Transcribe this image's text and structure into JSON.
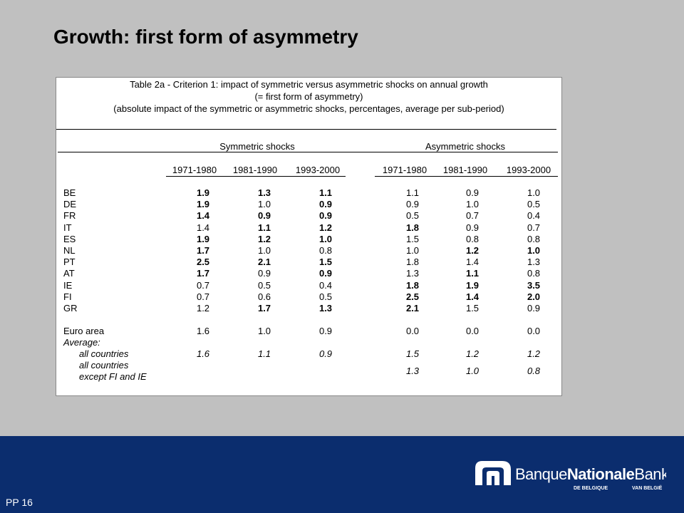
{
  "slide": {
    "title": "Growth: first form of asymmetry",
    "page": "PP 16"
  },
  "table": {
    "caption": [
      "Table 2a - Criterion 1: impact of symmetric versus asymmetric shocks on annual growth",
      "(= first form of asymmetry)",
      "(absolute impact of the symmetric or asymmetric shocks, percentages, average per sub-period)"
    ],
    "groups": [
      "Symmetric shocks",
      "Asymmetric shocks"
    ],
    "columns": [
      "1971-1980",
      "1981-1990",
      "1993-2000",
      "1971-1980",
      "1981-1990",
      "1993-2000"
    ],
    "rows": [
      {
        "label": "BE",
        "values": [
          "1.9",
          "1.3",
          "1.1",
          "1.1",
          "0.9",
          "1.0"
        ],
        "bold": [
          true,
          true,
          true,
          false,
          false,
          false
        ]
      },
      {
        "label": "DE",
        "values": [
          "1.9",
          "1.0",
          "0.9",
          "0.9",
          "1.0",
          "0.5"
        ],
        "bold": [
          true,
          false,
          true,
          false,
          false,
          false
        ]
      },
      {
        "label": "FR",
        "values": [
          "1.4",
          "0.9",
          "0.9",
          "0.5",
          "0.7",
          "0.4"
        ],
        "bold": [
          true,
          true,
          true,
          false,
          false,
          false
        ]
      },
      {
        "label": "IT",
        "values": [
          "1.4",
          "1.1",
          "1.2",
          "1.8",
          "0.9",
          "0.7"
        ],
        "bold": [
          false,
          true,
          true,
          true,
          false,
          false
        ]
      },
      {
        "label": "ES",
        "values": [
          "1.9",
          "1.2",
          "1.0",
          "1.5",
          "0.8",
          "0.8"
        ],
        "bold": [
          true,
          true,
          true,
          false,
          false,
          false
        ]
      },
      {
        "label": "NL",
        "values": [
          "1.7",
          "1.0",
          "0.8",
          "1.0",
          "1.2",
          "1.0"
        ],
        "bold": [
          true,
          false,
          false,
          false,
          true,
          true
        ]
      },
      {
        "label": "PT",
        "values": [
          "2.5",
          "2.1",
          "1.5",
          "1.8",
          "1.4",
          "1.3"
        ],
        "bold": [
          true,
          true,
          true,
          false,
          false,
          false
        ]
      },
      {
        "label": "AT",
        "values": [
          "1.7",
          "0.9",
          "0.9",
          "1.3",
          "1.1",
          "0.8"
        ],
        "bold": [
          true,
          false,
          true,
          false,
          true,
          false
        ]
      },
      {
        "label": "IE",
        "values": [
          "0.7",
          "0.5",
          "0.4",
          "1.8",
          "1.9",
          "3.5"
        ],
        "bold": [
          false,
          false,
          false,
          true,
          true,
          true
        ]
      },
      {
        "label": "FI",
        "values": [
          "0.7",
          "0.6",
          "0.5",
          "2.5",
          "1.4",
          "2.0"
        ],
        "bold": [
          false,
          false,
          false,
          true,
          true,
          true
        ]
      },
      {
        "label": "GR",
        "values": [
          "1.2",
          "1.7",
          "1.3",
          "2.1",
          "1.5",
          "0.9"
        ],
        "bold": [
          false,
          true,
          true,
          true,
          false,
          false
        ]
      },
      {
        "label": "Euro area",
        "values": [
          "1.6",
          "1.0",
          "0.9",
          "0.0",
          "0.0",
          "0.0"
        ]
      },
      {
        "label": "Average:",
        "italic": true
      },
      {
        "label": "all countries",
        "values": [
          "1.6",
          "1.1",
          "0.9",
          "1.5",
          "1.2",
          "1.2"
        ],
        "italic": true,
        "indent": true
      },
      {
        "label": [
          "all countries",
          "except FI and IE"
        ],
        "values": [
          null,
          null,
          null,
          "1.3",
          "1.0",
          "0.8"
        ],
        "italic": true,
        "indent": true
      }
    ]
  },
  "logo": {
    "parts": [
      "Banque",
      "Nationale",
      "Bank"
    ],
    "sub": [
      "DE BELGIQUE",
      "VAN BELGIË"
    ]
  }
}
